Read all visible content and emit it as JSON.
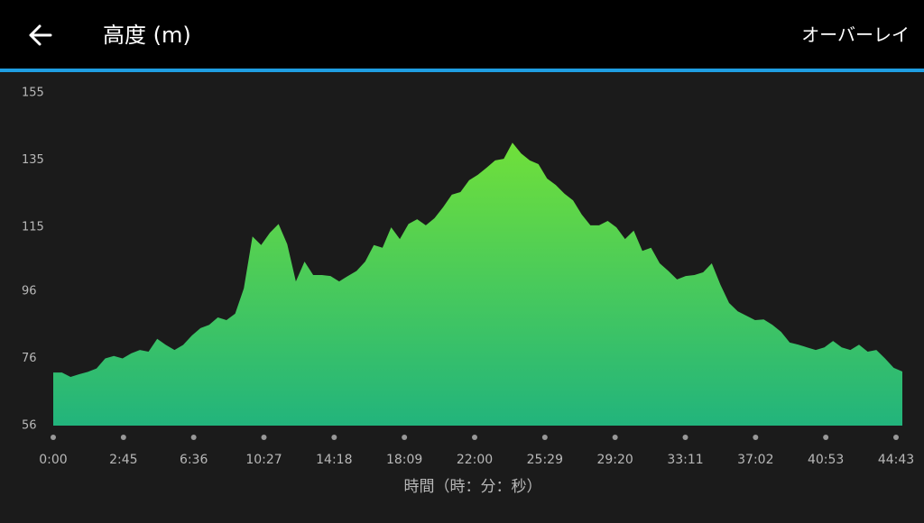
{
  "header": {
    "title": "高度 (m)",
    "action": "オーバーレイ"
  },
  "chart_data": {
    "type": "area",
    "x_label": "時間（時：分：秒）",
    "x_tick_labels": [
      "0:00",
      "2:45",
      "6:36",
      "10:27",
      "14:18",
      "18:09",
      "22:00",
      "25:29",
      "29:20",
      "33:11",
      "37:02",
      "40:53",
      "44:43"
    ],
    "values": [
      71.8,
      71.8,
      70.5,
      71.3,
      72,
      73,
      76,
      76.7,
      76,
      77.5,
      78.5,
      78,
      81.8,
      80,
      78.5,
      80,
      82.8,
      85,
      86,
      88.2,
      87.4,
      89.3,
      96.8,
      112.3,
      109.7,
      113.4,
      116,
      110,
      98.9,
      104.8,
      100.8,
      100.8,
      100.5,
      98.9,
      100.5,
      102,
      104.8,
      109.7,
      108.9,
      115,
      111.5,
      116,
      117.4,
      115.6,
      117.7,
      121,
      124.7,
      125.5,
      129,
      130.6,
      132.7,
      134.9,
      135.4,
      140.2,
      137,
      134.9,
      133.8,
      129.5,
      127.6,
      125,
      123,
      118.8,
      115.6,
      115.6,
      116.9,
      115,
      111.5,
      114,
      108,
      108.9,
      104.3,
      102,
      99.5,
      100.5,
      100.8,
      101.6,
      104.3,
      97.9,
      92.5,
      90,
      88.7,
      87.4,
      87.6,
      86,
      83.9,
      80.7,
      80.1,
      79.3,
      78.5,
      79.3,
      81.2,
      79.3,
      78.5,
      80.1,
      78,
      78.5,
      76,
      73.2,
      72.1
    ],
    "ylim": [
      56,
      155
    ],
    "yticks": [
      56,
      76,
      96,
      115,
      135,
      155
    ],
    "color_top": "#70e03a",
    "color_bottom": "#22b47c"
  }
}
